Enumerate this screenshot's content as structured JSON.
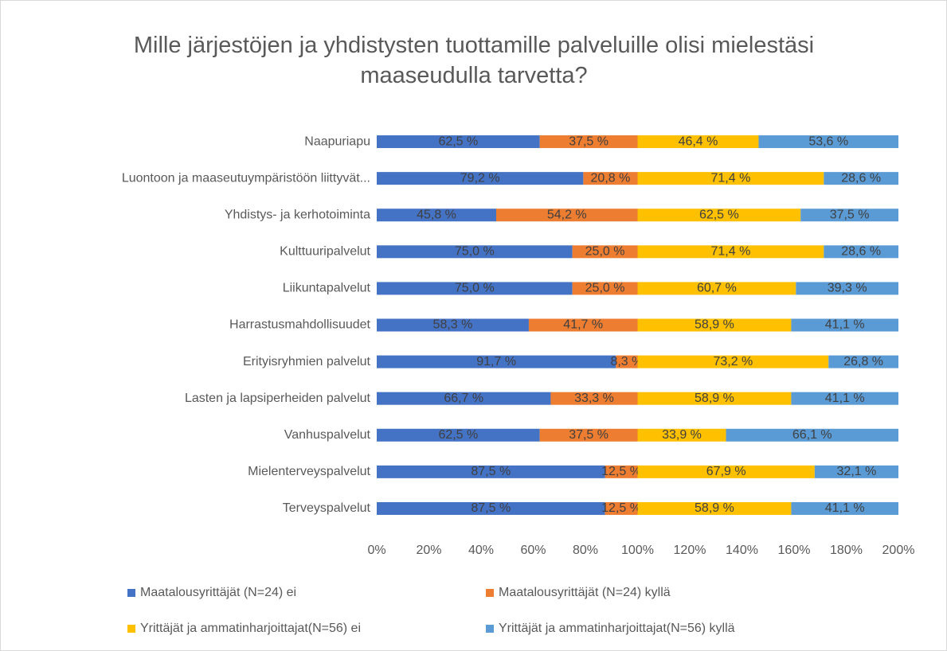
{
  "chart_data": {
    "type": "stacked_barh",
    "title": "Mille järjestöjen ja yhdistysten tuottamille palveluille olisi mielestäsi maaseudulla tarvetta?",
    "categories": [
      "Naapuriapu",
      "Luontoon ja maaseutuympäristöön liittyvät...",
      "Yhdistys- ja kerhotoiminta",
      "Kulttuuripalvelut",
      "Liikuntapalvelut",
      "Harrastusmahdollisuudet",
      "Erityisryhmien palvelut",
      "Lasten ja lapsiperheiden palvelut",
      "Vanhuspalvelut",
      "Mielenterveyspalvelut",
      "Terveyspalvelut"
    ],
    "series": [
      {
        "name": "Maatalousyrittäjät (N=24) ei",
        "color": "#4472c4",
        "values": [
          62.5,
          79.2,
          45.8,
          75.0,
          75.0,
          58.3,
          91.7,
          66.7,
          62.5,
          87.5,
          87.5
        ],
        "value_labels": [
          "62,5 %",
          "79,2 %",
          "45,8 %",
          "75,0 %",
          "75,0 %",
          "58,3 %",
          "91,7 %",
          "66,7 %",
          "62,5 %",
          "87,5 %",
          "87,5 %"
        ]
      },
      {
        "name": "Maatalousyrittäjät (N=24) kyllä",
        "color": "#ed7d31",
        "values": [
          37.5,
          20.8,
          54.2,
          25.0,
          25.0,
          41.7,
          8.3,
          33.3,
          37.5,
          12.5,
          12.5
        ],
        "value_labels": [
          "37,5 %",
          "20,8 %",
          "54,2 %",
          "25,0 %",
          "25,0 %",
          "41,7 %",
          "8,3 %",
          "33,3 %",
          "37,5 %",
          "12,5 %",
          "12,5 %"
        ]
      },
      {
        "name": "Yrittäjät ja ammatinharjoittajat(N=56) ei",
        "color": "#ffc000",
        "values": [
          46.4,
          71.4,
          62.5,
          71.4,
          60.7,
          58.9,
          73.2,
          58.9,
          33.9,
          67.9,
          58.9
        ],
        "value_labels": [
          "46,4 %",
          "71,4 %",
          "62,5 %",
          "71,4 %",
          "60,7 %",
          "58,9 %",
          "73,2 %",
          "58,9 %",
          "33,9 %",
          "67,9 %",
          "58,9 %"
        ]
      },
      {
        "name": "Yrittäjät ja ammatinharjoittajat(N=56) kyllä",
        "color": "#5b9bd5",
        "values": [
          53.6,
          28.6,
          37.5,
          28.6,
          39.3,
          41.1,
          26.8,
          41.1,
          66.1,
          32.1,
          41.1
        ],
        "value_labels": [
          "53,6 %",
          "28,6 %",
          "37,5 %",
          "28,6 %",
          "39,3 %",
          "41,1 %",
          "26,8 %",
          "41,1 %",
          "66,1 %",
          "32,1 %",
          "41,1 %"
        ]
      }
    ],
    "xlim": [
      0,
      200
    ],
    "xticks": [
      {
        "value": 0,
        "label": "0%"
      },
      {
        "value": 20,
        "label": "20%"
      },
      {
        "value": 40,
        "label": "40%"
      },
      {
        "value": 60,
        "label": "60%"
      },
      {
        "value": 80,
        "label": "80%"
      },
      {
        "value": 100,
        "label": "100%"
      },
      {
        "value": 120,
        "label": "120%"
      },
      {
        "value": 140,
        "label": "140%"
      },
      {
        "value": 160,
        "label": "160%"
      },
      {
        "value": 180,
        "label": "180%"
      },
      {
        "value": 200,
        "label": "200%"
      }
    ],
    "grid": false,
    "legend": "bottom"
  }
}
